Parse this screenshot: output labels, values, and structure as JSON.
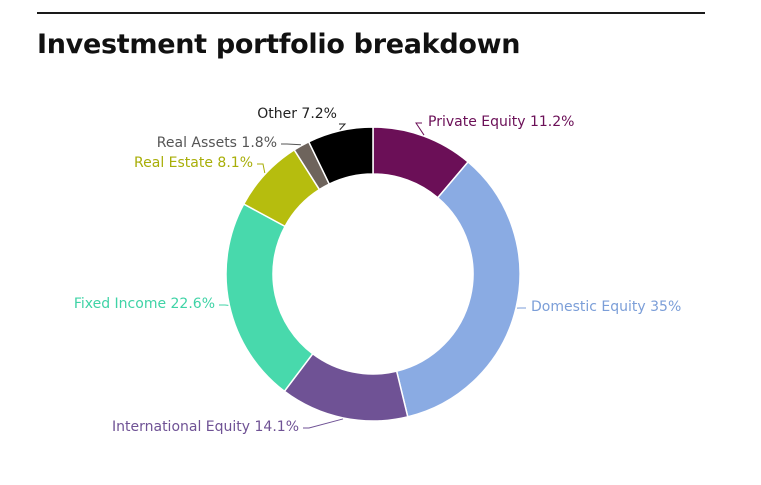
{
  "chart_data": {
    "type": "pie",
    "variant": "donut",
    "title": "Investment portfolio breakdown",
    "unit": "%",
    "slices": [
      {
        "label": "Private Equity",
        "value": 11.2,
        "display": "Private Equity 11.2%",
        "color": "#6b0f57"
      },
      {
        "label": "Domestic Equity",
        "value": 35,
        "display": "Domestic Equity 35%",
        "color": "#8aabe3"
      },
      {
        "label": "International Equity",
        "value": 14.1,
        "display": "International Equity 14.1%",
        "color": "#6f5295"
      },
      {
        "label": "Fixed Income",
        "value": 22.6,
        "display": "Fixed Income 22.6%",
        "color": "#48d9ac"
      },
      {
        "label": "Real Estate",
        "value": 8.1,
        "display": "Real Estate 8.1%",
        "color": "#b6bd0e"
      },
      {
        "label": "Real Assets",
        "value": 1.8,
        "display": "Real Assets 1.8%",
        "color": "#6e645c"
      },
      {
        "label": "Other",
        "value": 7.2,
        "display": "Other 7.2%",
        "color": "#000000"
      }
    ],
    "label_colors": [
      "#6b0f57",
      "#7b9ed8",
      "#6f5295",
      "#3fd3a6",
      "#a8ae08",
      "#555555",
      "#222222"
    ]
  }
}
